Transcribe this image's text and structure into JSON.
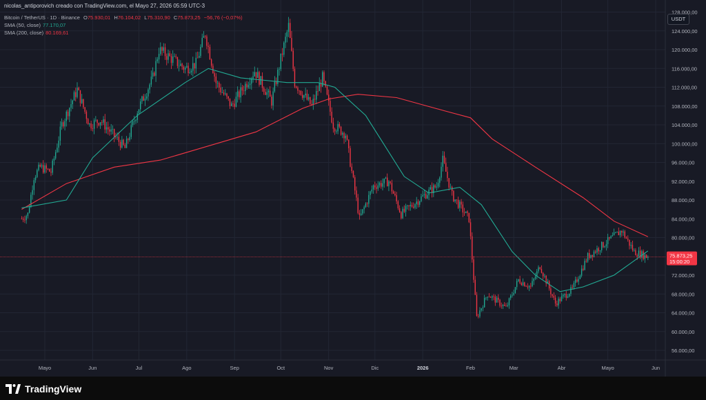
{
  "header": {
    "author_line": "nicolas_antiporovich creado con TradingView.com, el Mayo 27, 2026 05:59 UTC-3"
  },
  "legend": {
    "symbol": "Bitcoin / TetherUS · 1D · Binance",
    "o_label": "O",
    "o_value": "75.930,01",
    "h_label": "H",
    "h_value": "76.104,02",
    "l_label": "L",
    "l_value": "75.310,90",
    "c_label": "C",
    "c_value": "75.873,25",
    "change": "−56,76 (−0,07%)",
    "sma50_label": "SMA (50, close)",
    "sma50_value": "77.170,07",
    "sma200_label": "SMA (200, close)",
    "sma200_value": "80.169,61"
  },
  "currency_button": "USDT",
  "price_tag": {
    "price": "75.873,25",
    "countdown": "15:00:20"
  },
  "brand": "TradingView",
  "colors": {
    "bull": "#22ab94",
    "bear": "#f23645",
    "sma50": "#22ab94",
    "sma200": "#f23645",
    "background": "#181a25",
    "grid": "#222634"
  },
  "chart_data": {
    "type": "candlestick",
    "title": "Bitcoin / TetherUS · 1D · Binance",
    "y_ticks": [
      "128.000,00",
      "124.000,00",
      "120.000,00",
      "116.000,00",
      "112.000,00",
      "108.000,00",
      "104.000,00",
      "100.000,00",
      "96.000,00",
      "92.000,00",
      "88.000,00",
      "84.000,00",
      "80.000,00",
      "72.000,00",
      "68.000,00",
      "64.000,00",
      "60.000,00",
      "56.000,00"
    ],
    "y_tick_values": [
      128000,
      124000,
      120000,
      116000,
      112000,
      108000,
      104000,
      100000,
      96000,
      92000,
      88000,
      84000,
      80000,
      72000,
      68000,
      64000,
      60000,
      56000
    ],
    "ylim": [
      54200,
      130200
    ],
    "x_ticks": [
      "Mayo",
      "Jun",
      "Jul",
      "Ago",
      "Sep",
      "Oct",
      "Nov",
      "Dic",
      "2026",
      "Feb",
      "Mar",
      "Abr",
      "Mayo",
      "Jun"
    ],
    "x_tick_dates": [
      "2025-05-01",
      "2025-06-01",
      "2025-07-01",
      "2025-08-01",
      "2025-09-01",
      "2025-10-01",
      "2025-11-01",
      "2025-12-01",
      "2026-01-01",
      "2026-02-01",
      "2026-03-01",
      "2026-04-01",
      "2026-05-01",
      "2026-06-01"
    ],
    "last_price": 75873.25,
    "grid": true,
    "close_anchors": [
      [
        "2025-04-16",
        84000
      ],
      [
        "2025-04-20",
        85000
      ],
      [
        "2025-04-24",
        93000
      ],
      [
        "2025-04-28",
        95000
      ],
      [
        "2025-05-05",
        94000
      ],
      [
        "2025-05-12",
        104000
      ],
      [
        "2025-05-22",
        111500
      ],
      [
        "2025-05-30",
        104000
      ],
      [
        "2025-06-06",
        105000
      ],
      [
        "2025-06-22",
        99000
      ],
      [
        "2025-06-30",
        107000
      ],
      [
        "2025-07-10",
        114000
      ],
      [
        "2025-07-14",
        120000
      ],
      [
        "2025-07-31",
        116000
      ],
      [
        "2025-08-07",
        117000
      ],
      [
        "2025-08-13",
        123500
      ],
      [
        "2025-08-20",
        113000
      ],
      [
        "2025-08-30",
        108000
      ],
      [
        "2025-09-14",
        115500
      ],
      [
        "2025-09-25",
        109000
      ],
      [
        "2025-10-01",
        118000
      ],
      [
        "2025-10-06",
        125000
      ],
      [
        "2025-10-10",
        113000
      ],
      [
        "2025-10-21",
        108000
      ],
      [
        "2025-10-28",
        114000
      ],
      [
        "2025-11-04",
        104000
      ],
      [
        "2025-11-12",
        102000
      ],
      [
        "2025-11-21",
        84000
      ],
      [
        "2025-11-30",
        91000
      ],
      [
        "2025-12-10",
        92000
      ],
      [
        "2025-12-18",
        85000
      ],
      [
        "2026-01-02",
        89000
      ],
      [
        "2026-01-10",
        91000
      ],
      [
        "2026-01-14",
        96500
      ],
      [
        "2026-01-20",
        89000
      ],
      [
        "2026-01-31",
        84000
      ],
      [
        "2026-02-05",
        63000
      ],
      [
        "2026-02-12",
        68000
      ],
      [
        "2026-02-24",
        65000
      ],
      [
        "2026-03-04",
        71000
      ],
      [
        "2026-03-12",
        69500
      ],
      [
        "2026-03-18",
        74000
      ],
      [
        "2026-03-28",
        66000
      ],
      [
        "2026-04-08",
        69000
      ],
      [
        "2026-04-18",
        76000
      ],
      [
        "2026-04-30",
        79000
      ],
      [
        "2026-05-10",
        81500
      ],
      [
        "2026-05-18",
        77000
      ],
      [
        "2026-05-27",
        75873.25
      ]
    ],
    "sma50": [
      [
        "2025-04-16",
        86300
      ],
      [
        "2025-05-15",
        88000
      ],
      [
        "2025-06-01",
        97000
      ],
      [
        "2025-06-30",
        106000
      ],
      [
        "2025-07-31",
        113000
      ],
      [
        "2025-08-15",
        116000
      ],
      [
        "2025-09-05",
        114000
      ],
      [
        "2025-10-05",
        113000
      ],
      [
        "2025-10-25",
        113000
      ],
      [
        "2025-11-05",
        112000
      ],
      [
        "2025-11-25",
        106000
      ],
      [
        "2025-12-20",
        93000
      ],
      [
        "2026-01-05",
        89500
      ],
      [
        "2026-01-25",
        90700
      ],
      [
        "2026-02-08",
        87000
      ],
      [
        "2026-02-28",
        77000
      ],
      [
        "2026-03-15",
        72000
      ],
      [
        "2026-03-31",
        68500
      ],
      [
        "2026-04-15",
        69500
      ],
      [
        "2026-05-05",
        72000
      ],
      [
        "2026-05-27",
        77170.07
      ]
    ],
    "sma200": [
      [
        "2025-04-16",
        86000
      ],
      [
        "2025-05-15",
        91500
      ],
      [
        "2025-06-15",
        95000
      ],
      [
        "2025-07-15",
        96500
      ],
      [
        "2025-08-15",
        99500
      ],
      [
        "2025-09-15",
        102500
      ],
      [
        "2025-10-15",
        107500
      ],
      [
        "2025-11-01",
        109500
      ],
      [
        "2025-11-20",
        110500
      ],
      [
        "2025-12-15",
        109800
      ],
      [
        "2026-01-15",
        107000
      ],
      [
        "2026-02-01",
        105500
      ],
      [
        "2026-02-15",
        101000
      ],
      [
        "2026-03-15",
        95000
      ],
      [
        "2026-04-15",
        88500
      ],
      [
        "2026-05-05",
        83500
      ],
      [
        "2026-05-27",
        80169.61
      ]
    ]
  }
}
